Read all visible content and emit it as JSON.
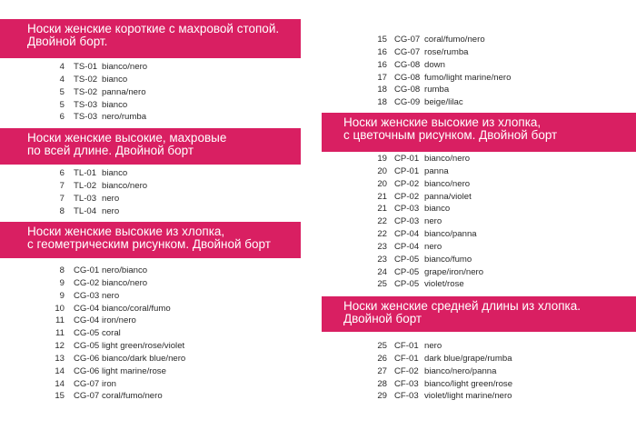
{
  "left_column": {
    "sections": [
      {
        "title": [
          "Носки женские короткие с махровой стопой.",
          "Двойной борт."
        ],
        "items": [
          {
            "size": "4",
            "code": "TS-01",
            "color": "bianco/nero"
          },
          {
            "size": "4",
            "code": "TS-02",
            "color": "bianco"
          },
          {
            "size": "5",
            "code": "TS-02",
            "color": "panna/nero"
          },
          {
            "size": "5",
            "code": "TS-03",
            "color": "bianco"
          },
          {
            "size": "6",
            "code": "TS-03",
            "color": "nero/rumba"
          }
        ]
      },
      {
        "title": [
          "Носки женские высокие, махровые",
          "по всей длине. Двойной борт"
        ],
        "items": [
          {
            "size": "6",
            "code": "TL-01",
            "color": "bianco"
          },
          {
            "size": "7",
            "code": "TL-02",
            "color": "bianco/nero"
          },
          {
            "size": "7",
            "code": "TL-03",
            "color": "nero"
          },
          {
            "size": "8",
            "code": "TL-04",
            "color": "nero"
          }
        ]
      },
      {
        "title": [
          "Носки женские высокие из хлопка,",
          "с геометрическим рисунком.  Двойной борт"
        ],
        "items": [
          {
            "size": "8",
            "code": "CG-01",
            "color": "nero/bianco"
          },
          {
            "size": "9",
            "code": "CG-02",
            "color": "bianco/nero"
          },
          {
            "size": "9",
            "code": "CG-03",
            "color": "nero"
          },
          {
            "size": "10",
            "code": "CG-04",
            "color": "bianco/coral/fumo"
          },
          {
            "size": "11",
            "code": "CG-04",
            "color": "iron/nero"
          },
          {
            "size": "11",
            "code": "CG-05",
            "color": "coral"
          },
          {
            "size": "12",
            "code": "CG-05",
            "color": "light green/rose/violet"
          },
          {
            "size": "13",
            "code": "CG-06",
            "color": "bianco/dark blue/nero"
          },
          {
            "size": "14",
            "code": "CG-06",
            "color": "light marine/rose"
          },
          {
            "size": "14",
            "code": "CG-07",
            "color": "iron"
          },
          {
            "size": "15",
            "code": "CG-07",
            "color": "coral/fumo/nero"
          }
        ]
      }
    ]
  },
  "right_column": {
    "top_items": [
      {
        "size": "15",
        "code": "CG-07",
        "color": "coral/fumo/nero"
      },
      {
        "size": "16",
        "code": "CG-07",
        "color": "rose/rumba"
      },
      {
        "size": "16",
        "code": "CG-08",
        "color": "down"
      },
      {
        "size": "17",
        "code": "CG-08",
        "color": "fumo/light marine/nero"
      },
      {
        "size": "18",
        "code": "CG-08",
        "color": "rumba"
      },
      {
        "size": "18",
        "code": "CG-09",
        "color": "beige/lilac"
      }
    ],
    "sections": [
      {
        "title": [
          "Носки женские высокие из хлопка,",
          "с цветочным рисунком. Двойной борт"
        ],
        "items": [
          {
            "size": "19",
            "code": "CP-01",
            "color": "bianco/nero"
          },
          {
            "size": "20",
            "code": "CP-01",
            "color": "panna"
          },
          {
            "size": "20",
            "code": "CP-02",
            "color": "bianco/nero"
          },
          {
            "size": "21",
            "code": "CP-02",
            "color": "panna/violet"
          },
          {
            "size": "21",
            "code": "CP-03",
            "color": "bianco"
          },
          {
            "size": "22",
            "code": "CP-03",
            "color": "nero"
          },
          {
            "size": "22",
            "code": "CP-04",
            "color": "bianco/panna"
          },
          {
            "size": "23",
            "code": "CP-04",
            "color": "nero"
          },
          {
            "size": "23",
            "code": "CP-05",
            "color": "bianco/fumo"
          },
          {
            "size": "24",
            "code": "CP-05",
            "color": "grape/iron/nero"
          },
          {
            "size": "25",
            "code": "CP-05",
            "color": "violet/rose"
          }
        ]
      },
      {
        "title": [
          "Носки женские средней длины из хлопка.",
          "Двойной борт"
        ],
        "items": [
          {
            "size": "25",
            "code": "CF-01",
            "color": "nero"
          },
          {
            "size": "26",
            "code": "CF-01",
            "color": "dark blue/grape/rumba"
          },
          {
            "size": "27",
            "code": "CF-02",
            "color": "bianco/nero/panna"
          },
          {
            "size": "28",
            "code": "CF-03",
            "color": "bianco/light green/rose"
          },
          {
            "size": "29",
            "code": "CF-03",
            "color": "violet/light marine/nero"
          }
        ]
      }
    ]
  },
  "colors": {
    "banner": "#d91f62",
    "banner_text": "#ffffff",
    "text": "#2a2a2a"
  }
}
